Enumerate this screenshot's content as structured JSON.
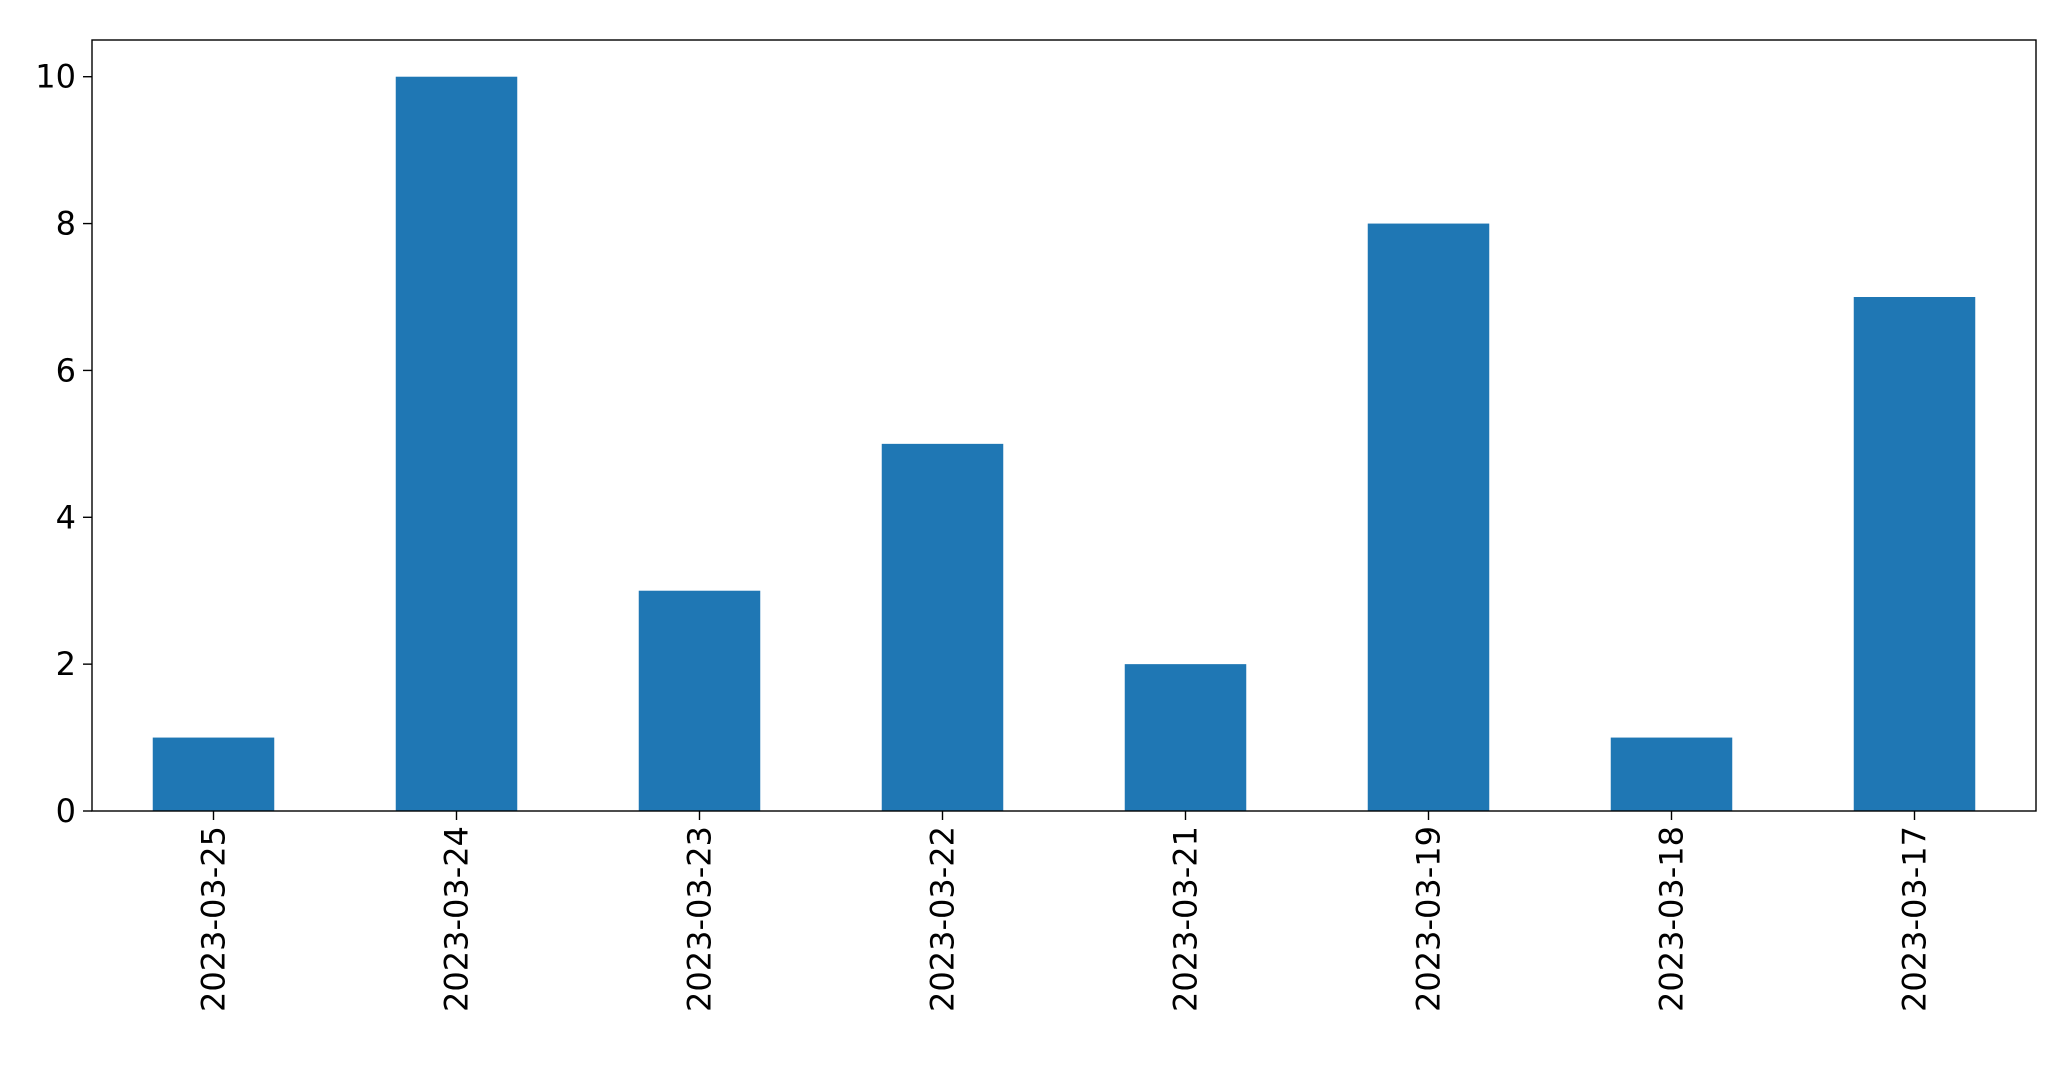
{
  "chart_data": {
    "type": "bar",
    "categories": [
      "2023-03-25",
      "2023-03-24",
      "2023-03-23",
      "2023-03-22",
      "2023-03-21",
      "2023-03-19",
      "2023-03-18",
      "2023-03-17"
    ],
    "values": [
      1,
      10,
      3,
      5,
      2,
      8,
      1,
      7
    ],
    "title": "",
    "xlabel": "",
    "ylabel": "",
    "ylim": [
      0,
      10.5
    ],
    "yticks": [
      0,
      2,
      4,
      6,
      8,
      10
    ],
    "grid": false,
    "legend": "none",
    "bar_color": "#1f77b4"
  }
}
